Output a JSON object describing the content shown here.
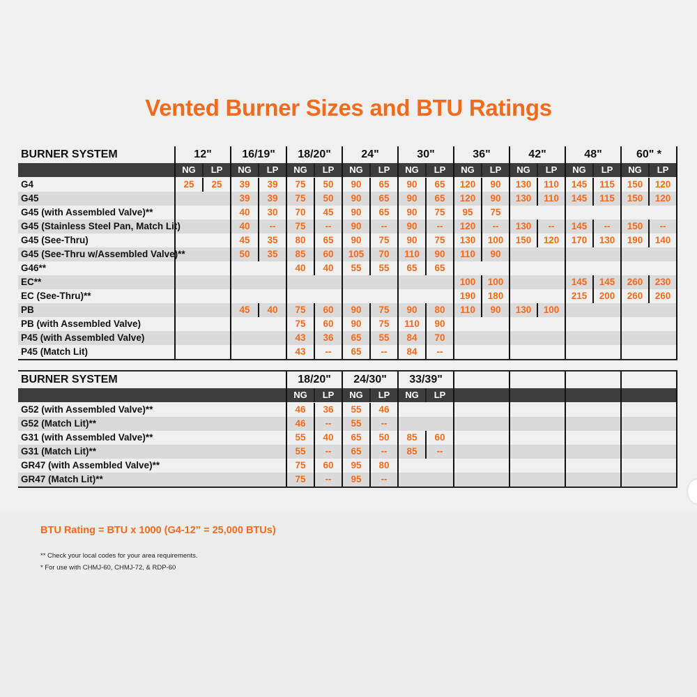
{
  "title": "Vented Burner Sizes and BTU Ratings",
  "colors": {
    "accent": "#f26a1b",
    "header_bar": "#3d3d3d",
    "row_shade": "#dadada"
  },
  "table1": {
    "header": "BURNER SYSTEM",
    "sizes": [
      "12\"",
      "16/19\"",
      "18/20\"",
      "24\"",
      "30\"",
      "36\"",
      "42\"",
      "48\"",
      "60\" *"
    ],
    "sub": [
      "NG",
      "LP"
    ],
    "rows": [
      {
        "label": "G4",
        "values": [
          "25",
          "25",
          "39",
          "39",
          "75",
          "50",
          "90",
          "65",
          "90",
          "65",
          "120",
          "90",
          "130",
          "110",
          "145",
          "115",
          "150",
          "120"
        ]
      },
      {
        "label": "G45",
        "values": [
          "",
          "",
          "39",
          "39",
          "75",
          "50",
          "90",
          "65",
          "90",
          "65",
          "120",
          "90",
          "130",
          "110",
          "145",
          "115",
          "150",
          "120"
        ]
      },
      {
        "label": "G45 (with Assembled Valve)**",
        "values": [
          "",
          "",
          "40",
          "30",
          "70",
          "45",
          "90",
          "65",
          "90",
          "75",
          "95",
          "75",
          "",
          "",
          "",
          "",
          "",
          ""
        ]
      },
      {
        "label": "G45 (Stainless Steel Pan, Match Lit)",
        "values": [
          "",
          "",
          "40",
          "--",
          "75",
          "--",
          "90",
          "--",
          "90",
          "--",
          "120",
          "--",
          "130",
          "--",
          "145",
          "--",
          "150",
          "--"
        ]
      },
      {
        "label": "G45 (See-Thru)",
        "values": [
          "",
          "",
          "45",
          "35",
          "80",
          "65",
          "90",
          "75",
          "90",
          "75",
          "130",
          "100",
          "150",
          "120",
          "170",
          "130",
          "190",
          "140"
        ]
      },
      {
        "label": "G45 (See-Thru w/Assembled Valve)**",
        "values": [
          "",
          "",
          "50",
          "35",
          "85",
          "60",
          "105",
          "70",
          "110",
          "90",
          "110",
          "90",
          "",
          "",
          "",
          "",
          "",
          ""
        ]
      },
      {
        "label": "G46**",
        "values": [
          "",
          "",
          "",
          "",
          "40",
          "40",
          "55",
          "55",
          "65",
          "65",
          "",
          "",
          "",
          "",
          "",
          "",
          "",
          ""
        ]
      },
      {
        "label": "EC**",
        "values": [
          "",
          "",
          "",
          "",
          "",
          "",
          "",
          "",
          "",
          "",
          "100",
          "100",
          "",
          "",
          "145",
          "145",
          "260",
          "230"
        ]
      },
      {
        "label": "EC (See-Thru)**",
        "values": [
          "",
          "",
          "",
          "",
          "",
          "",
          "",
          "",
          "",
          "",
          "190",
          "180",
          "",
          "",
          "215",
          "200",
          "260",
          "260"
        ]
      },
      {
        "label": "PB",
        "values": [
          "",
          "",
          "45",
          "40",
          "75",
          "60",
          "90",
          "75",
          "90",
          "80",
          "110",
          "90",
          "130",
          "100",
          "",
          "",
          "",
          ""
        ]
      },
      {
        "label": "PB (with Assembled Valve)",
        "values": [
          "",
          "",
          "",
          "",
          "75",
          "60",
          "90",
          "75",
          "110",
          "90",
          "",
          "",
          "",
          "",
          "",
          "",
          "",
          ""
        ]
      },
      {
        "label": "P45 (with Assembled Valve)",
        "values": [
          "",
          "",
          "",
          "",
          "43",
          "36",
          "65",
          "55",
          "84",
          "70",
          "",
          "",
          "",
          "",
          "",
          "",
          "",
          ""
        ]
      },
      {
        "label": "P45 (Match Lit)",
        "values": [
          "",
          "",
          "",
          "",
          "43",
          "--",
          "65",
          "--",
          "84",
          "--",
          "",
          "",
          "",
          "",
          "",
          "",
          "",
          ""
        ]
      }
    ]
  },
  "table2": {
    "header": "BURNER SYSTEM",
    "sizes": [
      "18/20\"",
      "24/30\"",
      "33/39\""
    ],
    "sub": [
      "NG",
      "LP"
    ],
    "rows": [
      {
        "label": "G52 (with Assembled Valve)**",
        "values": [
          "46",
          "36",
          "55",
          "46",
          "",
          ""
        ]
      },
      {
        "label": "G52 (Match Lit)**",
        "values": [
          "46",
          "--",
          "55",
          "--",
          "",
          ""
        ]
      },
      {
        "label": "G31 (with Assembled Valve)**",
        "values": [
          "55",
          "40",
          "65",
          "50",
          "85",
          "60"
        ]
      },
      {
        "label": "G31 (Match Lit)**",
        "values": [
          "55",
          "--",
          "65",
          "--",
          "85",
          "--"
        ]
      },
      {
        "label": "GR47 (with Assembled Valve)**",
        "values": [
          "75",
          "60",
          "95",
          "80",
          "",
          ""
        ]
      },
      {
        "label": "GR47 (Match Lit)**",
        "values": [
          "75",
          "--",
          "95",
          "--",
          "",
          ""
        ]
      }
    ]
  },
  "footer": {
    "btu_note": "BTU Rating = BTU x 1000 (G4-12” = 25,000 BTUs)",
    "note1": "** Check your local codes for your area requirements.",
    "note2": "* For use with CHMJ-60, CHMJ-72, & RDP-60"
  }
}
